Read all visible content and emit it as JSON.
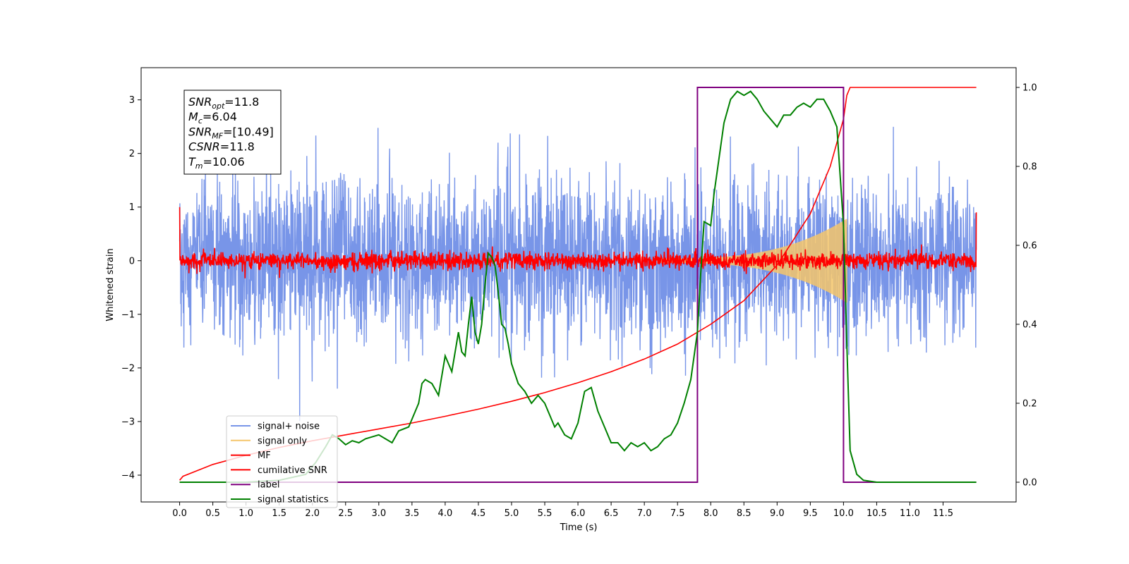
{
  "chart_data": {
    "type": "line",
    "xlabel": "Time (s)",
    "ylabel": "Whitened strain",
    "xlim": [
      -0.58,
      12.6
    ],
    "ylim": [
      -4.5,
      3.6
    ],
    "y2lim": [
      -0.05,
      1.05
    ],
    "x_ticks": [
      "0.0",
      "0.5",
      "1.0",
      "1.5",
      "2.0",
      "2.5",
      "3.0",
      "3.5",
      "4.0",
      "4.5",
      "5.0",
      "5.5",
      "6.0",
      "6.5",
      "7.0",
      "7.5",
      "8.0",
      "8.5",
      "9.0",
      "9.5",
      "10.0",
      "10.5",
      "11.0",
      "11.5"
    ],
    "y_ticks": [
      "3",
      "2",
      "1",
      "0",
      "−1",
      "−2",
      "−3",
      "−4"
    ],
    "y2_ticks": [
      "1.0",
      "0.8",
      "0.6",
      "0.4",
      "0.2",
      "0.0"
    ],
    "info_box": [
      {
        "sym": "SNR",
        "sub": "opt",
        "val": "=11.8"
      },
      {
        "sym": "M",
        "sub": "c",
        "val": "=6.04"
      },
      {
        "sym": "SNR",
        "sub": "MF",
        "val": "=[10.49]"
      },
      {
        "sym": "CSNR",
        "sub": "",
        "val": "=11.8"
      },
      {
        "sym": "T",
        "sub": "m",
        "val": "=10.06"
      }
    ],
    "legend": {
      "placement": "lower-left",
      "entries": [
        {
          "label": "signal+ noise",
          "color": "#7895e8"
        },
        {
          "label": "signal only",
          "color": "#f5c56a"
        },
        {
          "label": "MF",
          "color": "#ff0000"
        },
        {
          "label": "cumilative SNR",
          "color": "#ff0000"
        },
        {
          "label": "label",
          "color": "#7f007f"
        },
        {
          "label": "signal statistics",
          "color": "#008000"
        }
      ]
    },
    "series": [
      {
        "name": "signal+ noise",
        "axis": "left",
        "color": "#7895e8",
        "x_range": [
          0.0,
          12.0
        ],
        "std": 0.75,
        "max_abs": 3.0
      },
      {
        "name": "signal only",
        "axis": "left",
        "color": "#f5c56a",
        "x_range": [
          7.2,
          10.05
        ],
        "peak_amplitude": 0.78
      },
      {
        "name": "MF",
        "axis": "left",
        "color": "#ff0000",
        "x_range": [
          0.0,
          12.0
        ],
        "std": 0.08,
        "start_value": 1.0,
        "end_value": 0.9
      },
      {
        "name": "cumilative SNR",
        "axis": "right",
        "color": "#ff0000",
        "x": [
          0.0,
          0.05,
          0.5,
          1.0,
          1.5,
          2.0,
          2.5,
          3.0,
          3.5,
          4.0,
          4.5,
          5.0,
          5.5,
          6.0,
          6.5,
          7.0,
          7.5,
          8.0,
          8.5,
          9.0,
          9.5,
          9.8,
          10.0,
          10.05,
          10.1,
          12.0
        ],
        "values": [
          0.005,
          0.015,
          0.045,
          0.068,
          0.088,
          0.105,
          0.12,
          0.135,
          0.15,
          0.167,
          0.185,
          0.205,
          0.227,
          0.252,
          0.28,
          0.312,
          0.35,
          0.4,
          0.46,
          0.55,
          0.68,
          0.8,
          0.92,
          0.98,
          1.0,
          1.0
        ]
      },
      {
        "name": "label",
        "axis": "right",
        "color": "#7f007f",
        "x": [
          0.0,
          7.8,
          7.8,
          10.0,
          10.0,
          12.0
        ],
        "values": [
          0.0,
          0.0,
          1.0,
          1.0,
          0.0,
          0.0
        ]
      },
      {
        "name": "signal statistics",
        "axis": "right",
        "color": "#008000",
        "x": [
          0.0,
          1.0,
          1.5,
          1.9,
          2.05,
          2.2,
          2.3,
          2.4,
          2.5,
          2.6,
          2.7,
          2.8,
          3.0,
          3.1,
          3.2,
          3.3,
          3.45,
          3.55,
          3.6,
          3.65,
          3.7,
          3.8,
          3.9,
          4.0,
          4.1,
          4.2,
          4.25,
          4.3,
          4.35,
          4.4,
          4.45,
          4.5,
          4.55,
          4.6,
          4.65,
          4.7,
          4.75,
          4.8,
          4.85,
          4.9,
          4.95,
          5.0,
          5.1,
          5.2,
          5.3,
          5.4,
          5.5,
          5.6,
          5.65,
          5.7,
          5.8,
          5.9,
          6.0,
          6.1,
          6.2,
          6.3,
          6.4,
          6.5,
          6.6,
          6.7,
          6.8,
          6.9,
          7.0,
          7.1,
          7.2,
          7.3,
          7.4,
          7.5,
          7.6,
          7.7,
          7.8,
          7.85,
          7.9,
          8.0,
          8.05,
          8.1,
          8.2,
          8.3,
          8.4,
          8.5,
          8.6,
          8.7,
          8.8,
          8.9,
          9.0,
          9.1,
          9.2,
          9.3,
          9.4,
          9.5,
          9.6,
          9.7,
          9.8,
          9.9,
          10.0,
          10.05,
          10.1,
          10.2,
          10.3,
          10.5,
          11.0,
          12.0
        ],
        "values": [
          0.0,
          0.0,
          0.005,
          0.02,
          0.05,
          0.09,
          0.12,
          0.11,
          0.095,
          0.105,
          0.1,
          0.11,
          0.12,
          0.11,
          0.1,
          0.13,
          0.14,
          0.18,
          0.2,
          0.25,
          0.26,
          0.25,
          0.22,
          0.32,
          0.28,
          0.38,
          0.33,
          0.32,
          0.4,
          0.47,
          0.38,
          0.35,
          0.4,
          0.5,
          0.58,
          0.57,
          0.55,
          0.48,
          0.4,
          0.39,
          0.35,
          0.3,
          0.25,
          0.23,
          0.2,
          0.22,
          0.2,
          0.16,
          0.14,
          0.15,
          0.12,
          0.11,
          0.15,
          0.23,
          0.24,
          0.18,
          0.14,
          0.1,
          0.1,
          0.08,
          0.1,
          0.09,
          0.1,
          0.08,
          0.09,
          0.11,
          0.12,
          0.15,
          0.2,
          0.26,
          0.38,
          0.53,
          0.66,
          0.65,
          0.73,
          0.79,
          0.91,
          0.97,
          0.99,
          0.98,
          0.99,
          0.97,
          0.94,
          0.92,
          0.9,
          0.93,
          0.93,
          0.95,
          0.96,
          0.95,
          0.97,
          0.97,
          0.94,
          0.9,
          0.65,
          0.35,
          0.08,
          0.02,
          0.005,
          0.0,
          0.0,
          0.0
        ]
      }
    ]
  }
}
